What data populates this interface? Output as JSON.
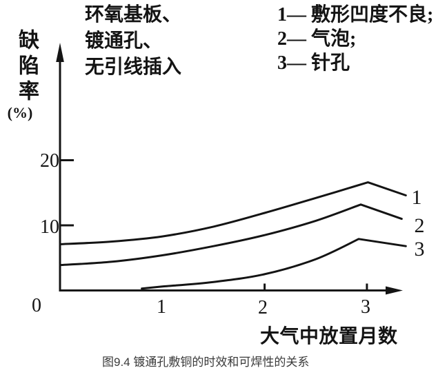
{
  "figure": {
    "annotation": "环氧基板、\n镀通孔、\n无引线插入",
    "y_axis_title": "缺陷率",
    "y_axis_unit": "(%)",
    "x_axis_title": "大气中放置月数",
    "caption": "图9.4 镀通孔敷铜的时效和可焊性的关系",
    "legend": {
      "items": [
        {
          "text": "1— 敷形凹度不良;"
        },
        {
          "text": "2— 气泡;"
        },
        {
          "text": "3— 针孔"
        }
      ]
    },
    "y_ticks": [
      "20",
      "10"
    ],
    "origin_label": "0",
    "x_ticks": [
      "1",
      "2",
      "3"
    ]
  },
  "chart_data": {
    "type": "line",
    "title": "镀通孔敷铜的时效和可焊性的关系",
    "xlabel": "大气中放置月数",
    "ylabel": "缺陷率(%)",
    "xlim": [
      0,
      3.6
    ],
    "ylim": [
      0,
      25
    ],
    "x_tick_values": [
      1,
      2,
      3
    ],
    "y_tick_values": [
      10,
      20
    ],
    "x_tick_marks_drawn": [
      2,
      3
    ],
    "y_tick_marks_drawn": [
      10,
      20
    ],
    "grid": false,
    "legend_position": "top-right",
    "line_color": "#141414",
    "series": [
      {
        "label": "1",
        "name": "敷形凹度不良",
        "points": [
          [
            0,
            7.1
          ],
          [
            0.5,
            7.5
          ],
          [
            1,
            8.3
          ],
          [
            1.5,
            9.8
          ],
          [
            2,
            11.9
          ],
          [
            2.5,
            14.2
          ],
          [
            3.01,
            16.6
          ],
          [
            3.38,
            14.6
          ]
        ]
      },
      {
        "label": "2",
        "name": "气泡",
        "points": [
          [
            0,
            3.9
          ],
          [
            0.5,
            4.4
          ],
          [
            1,
            5.4
          ],
          [
            1.5,
            6.8
          ],
          [
            2,
            8.5
          ],
          [
            2.5,
            10.7
          ],
          [
            2.94,
            13.2
          ],
          [
            3.34,
            11.0
          ]
        ]
      },
      {
        "label": "3",
        "name": "针孔",
        "points": [
          [
            0.8,
            0.3
          ],
          [
            1,
            0.6
          ],
          [
            1.5,
            1.3
          ],
          [
            2,
            2.5
          ],
          [
            2.5,
            4.8
          ],
          [
            2.92,
            7.9
          ],
          [
            3.38,
            6.8
          ]
        ]
      }
    ]
  }
}
